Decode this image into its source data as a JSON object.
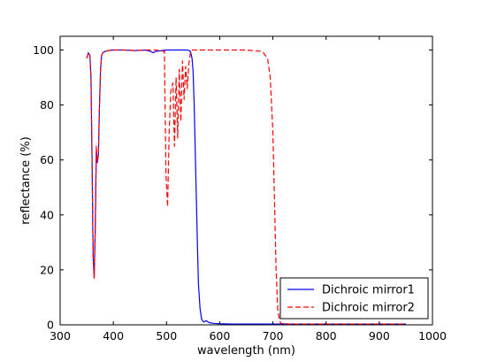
{
  "chart_data": {
    "type": "line",
    "title": "",
    "xlabel": "wavelength (nm)",
    "ylabel": "reflectance (%)",
    "xlim": [
      300,
      1000
    ],
    "ylim": [
      0,
      105
    ],
    "xticks": [
      300,
      400,
      500,
      600,
      700,
      800,
      900,
      1000
    ],
    "yticks": [
      0,
      20,
      40,
      60,
      80,
      100
    ],
    "grid": false,
    "legend_position": "lower-right",
    "series": [
      {
        "name": "Dichroic mirror1",
        "color": "#0000ff",
        "style": "solid",
        "x": [
          350,
          353,
          356,
          358,
          360,
          362,
          364,
          366,
          368,
          370,
          372,
          374,
          376,
          378,
          380,
          385,
          390,
          400,
          420,
          440,
          460,
          470,
          475,
          480,
          500,
          520,
          540,
          545,
          548,
          550,
          552,
          555,
          558,
          560,
          563,
          566,
          570,
          575,
          580,
          590,
          600,
          620,
          650,
          700,
          800,
          950
        ],
        "y": [
          97,
          99,
          98,
          90,
          60,
          25,
          17,
          35,
          63,
          59,
          62,
          80,
          93,
          98,
          99,
          99.5,
          99.8,
          100,
          100,
          99.8,
          100,
          99.5,
          99,
          99.5,
          100,
          100,
          100,
          99.5,
          97,
          92,
          80,
          55,
          30,
          15,
          6,
          2,
          1,
          1.5,
          0.8,
          0.5,
          0.4,
          0.3,
          0.3,
          0.3,
          0.3,
          0.3
        ]
      },
      {
        "name": "Dichroic mirror2",
        "color": "#ff0000",
        "style": "dashed",
        "x": [
          350,
          353,
          356,
          358,
          360,
          362,
          364,
          366,
          368,
          370,
          372,
          374,
          376,
          378,
          380,
          385,
          390,
          400,
          420,
          440,
          460,
          480,
          496,
          499,
          502,
          505,
          508,
          512,
          515,
          518,
          521,
          524,
          527,
          530,
          533,
          536,
          539,
          542,
          545,
          548,
          560,
          600,
          650,
          680,
          690,
          695,
          700,
          703,
          706,
          709,
          712,
          715,
          720,
          730,
          750,
          800,
          950
        ],
        "y": [
          97,
          99,
          98,
          90,
          60,
          25,
          17,
          35,
          65,
          59,
          63,
          80,
          93,
          98,
          99,
          99.5,
          99.8,
          100,
          100,
          99.8,
          100,
          100,
          99.5,
          55,
          43,
          70,
          85,
          88,
          65,
          90,
          68,
          93,
          74,
          96,
          82,
          94,
          86,
          95,
          99,
          100,
          100,
          100,
          100,
          99.5,
          97,
          90,
          70,
          45,
          20,
          6,
          2,
          0.5,
          0.5,
          0.3,
          0.3,
          0.3,
          0.3
        ]
      }
    ]
  }
}
